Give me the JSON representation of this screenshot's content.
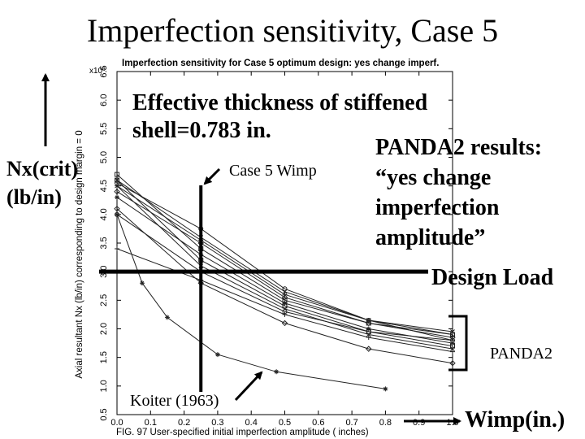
{
  "slide": {
    "title": "Imperfection sensitivity, Case 5",
    "annotations": {
      "effective_thickness_line1": "Effective thickness of stiffened",
      "effective_thickness_line2": "shell=0.783 in.",
      "panda2_results_line1": "PANDA2 results:",
      "panda2_results_line2": "“yes change",
      "panda2_results_line3": "imperfection",
      "panda2_results_line4": "amplitude”",
      "nx_line1": "Nx(crit)",
      "nx_line2": "(lb/in)",
      "case5_wimp": "Case 5 Wimp",
      "design_load": "Design Load",
      "panda2": "PANDA2",
      "koiter": "Koiter (1963)",
      "wimp": "Wimp(in.)"
    }
  },
  "chart_data": {
    "type": "line",
    "title": "Imperfection sensitivity for Case 5 optimum design: yes change imperf.",
    "xlabel": "FIG. 97 User-specified initial imperfection amplitude ( inches)",
    "ylabel": "Axial resultant Nx (lb/in) corresponding to design margin = 0",
    "y_exponent_label": "x10³",
    "xlim": [
      0,
      1
    ],
    "ylim": [
      0.5,
      6.5
    ],
    "x_ticks": [
      "0.0",
      "0.1",
      "0.2",
      "0.3",
      "0.4",
      "0.5",
      "0.6",
      "0.7",
      "0.8",
      "0.9",
      "1.0"
    ],
    "y_ticks": [
      "0.5",
      "1.0",
      "1.5",
      "2.0",
      "2.5",
      "3.0",
      "3.5",
      "4.0",
      "4.5",
      "5.0",
      "5.5",
      "6.0",
      "6.5"
    ],
    "design_load": 3.0,
    "case5_wimp": 0.25,
    "series": [
      {
        "x": [
          0,
          0.25,
          0.5,
          0.75,
          1.0
        ],
        "values": [
          4.7,
          3.4,
          2.5,
          2.1,
          1.9
        ]
      },
      {
        "x": [
          0,
          0.25,
          0.5,
          0.75,
          1.0
        ],
        "values": [
          4.6,
          3.6,
          2.65,
          2.15,
          1.95
        ]
      },
      {
        "x": [
          0,
          0.25,
          0.5,
          0.75,
          1.0
        ],
        "values": [
          4.55,
          3.75,
          2.7,
          2.15,
          1.9
        ]
      },
      {
        "x": [
          0,
          0.25,
          0.5,
          0.75,
          1.0
        ],
        "values": [
          4.5,
          3.55,
          2.6,
          2.15,
          1.8
        ]
      },
      {
        "x": [
          0,
          0.25,
          0.5,
          0.75,
          1.0
        ],
        "values": [
          4.4,
          3.5,
          2.55,
          2.1,
          1.85
        ]
      },
      {
        "x": [
          0,
          0.25,
          0.5,
          0.75,
          1.0
        ],
        "values": [
          4.3,
          3.3,
          2.45,
          2.0,
          1.75
        ]
      },
      {
        "x": [
          0,
          0.25,
          0.5,
          0.75,
          1.0
        ],
        "values": [
          4.6,
          3.2,
          2.4,
          1.95,
          1.7
        ]
      },
      {
        "x": [
          0,
          0.25,
          0.5,
          0.75,
          1.0
        ],
        "values": [
          4.5,
          3.1,
          2.35,
          1.9,
          1.65
        ]
      },
      {
        "x": [
          0,
          0.25,
          0.5,
          0.75,
          1.0
        ],
        "values": [
          4.0,
          3.0,
          2.3,
          1.95,
          1.8
        ]
      },
      {
        "x": [
          0,
          0.25,
          0.5,
          0.75,
          1.0
        ],
        "values": [
          3.4,
          2.85,
          2.25,
          1.85,
          1.6
        ]
      },
      {
        "x": [
          0,
          0.25,
          0.5,
          0.75,
          1.0
        ],
        "values": [
          4.1,
          2.8,
          2.1,
          1.65,
          1.4
        ]
      },
      {
        "x": [
          0,
          0.075,
          0.15,
          0.3,
          0.475,
          0.8
        ],
        "values": [
          4.0,
          2.8,
          2.2,
          1.55,
          1.25,
          0.95
        ]
      }
    ]
  }
}
